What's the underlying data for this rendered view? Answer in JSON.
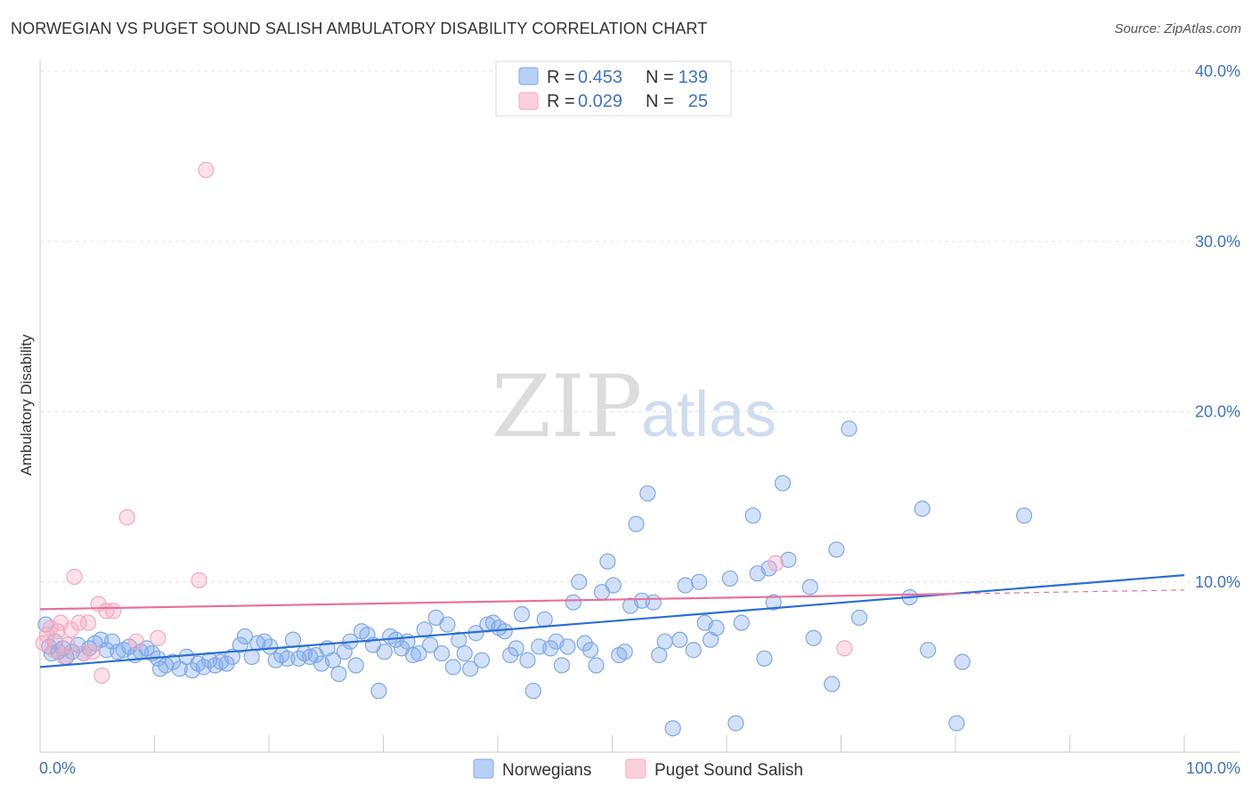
{
  "header": {
    "title": "NORWEGIAN VS PUGET SOUND SALISH AMBULATORY DISABILITY CORRELATION CHART",
    "source": "Source: ZipAtlas.com"
  },
  "watermark": {
    "zip": "ZIP",
    "atlas": "atlas"
  },
  "chart_data": {
    "type": "scatter",
    "ylabel": "Ambulatory Disability",
    "xlim": [
      0,
      100
    ],
    "ylim": [
      0,
      40
    ],
    "x_tick_labels": [
      "0.0%",
      "100.0%"
    ],
    "y_ticks": [
      10,
      20,
      30,
      40
    ],
    "y_tick_labels": [
      "10.0%",
      "20.0%",
      "30.0%",
      "40.0%"
    ],
    "grid": true,
    "legend_position": "top-center",
    "legend": [
      {
        "r_label": "R =",
        "r_value": "0.453",
        "n_label": "N =",
        "n_value": "139"
      },
      {
        "r_label": "R =",
        "r_value": "0.029",
        "n_label": "N =",
        "n_value": "25"
      }
    ],
    "series": [
      {
        "name": "Norwegians",
        "color": "#7fa8e8",
        "line_color": "#2b6fd1",
        "trend": {
          "x0": 0,
          "y0": 5.0,
          "x1": 100,
          "y1": 10.4
        },
        "points": [
          [
            0.5,
            7.5
          ],
          [
            0.8,
            6.2
          ],
          [
            1,
            5.8
          ],
          [
            1.3,
            6.5
          ],
          [
            1.6,
            5.9
          ],
          [
            2,
            6.1
          ],
          [
            2.3,
            5.6
          ],
          [
            2.8,
            5.9
          ],
          [
            3.3,
            6.3
          ],
          [
            3.8,
            5.8
          ],
          [
            4.3,
            6.1
          ],
          [
            4.8,
            6.4
          ],
          [
            5.3,
            6.6
          ],
          [
            5.8,
            6.0
          ],
          [
            6.3,
            6.5
          ],
          [
            6.8,
            5.9
          ],
          [
            7.3,
            6.0
          ],
          [
            7.8,
            6.2
          ],
          [
            8.3,
            5.7
          ],
          [
            8.8,
            5.9
          ],
          [
            9.3,
            6.1
          ],
          [
            9.8,
            5.8
          ],
          [
            10.3,
            5.5
          ],
          [
            10.5,
            4.9
          ],
          [
            11,
            5.1
          ],
          [
            11.6,
            5.3
          ],
          [
            12.2,
            4.9
          ],
          [
            12.8,
            5.6
          ],
          [
            13.3,
            4.8
          ],
          [
            13.8,
            5.2
          ],
          [
            14.3,
            5.0
          ],
          [
            14.8,
            5.4
          ],
          [
            15.3,
            5.1
          ],
          [
            15.8,
            5.3
          ],
          [
            16.3,
            5.2
          ],
          [
            16.8,
            5.6
          ],
          [
            17.5,
            6.3
          ],
          [
            17.9,
            6.8
          ],
          [
            18.5,
            5.6
          ],
          [
            19,
            6.4
          ],
          [
            19.6,
            6.5
          ],
          [
            20.1,
            6.2
          ],
          [
            20.6,
            5.4
          ],
          [
            21.1,
            5.7
          ],
          [
            21.6,
            5.5
          ],
          [
            22.1,
            6.6
          ],
          [
            22.6,
            5.5
          ],
          [
            23.1,
            5.8
          ],
          [
            23.6,
            5.6
          ],
          [
            24.1,
            5.7
          ],
          [
            24.6,
            5.2
          ],
          [
            25.1,
            6.1
          ],
          [
            25.6,
            5.4
          ],
          [
            26.1,
            4.6
          ],
          [
            26.6,
            5.9
          ],
          [
            27.1,
            6.5
          ],
          [
            27.6,
            5.1
          ],
          [
            28.1,
            7.1
          ],
          [
            28.6,
            6.9
          ],
          [
            29.1,
            6.3
          ],
          [
            29.6,
            3.6
          ],
          [
            30.1,
            5.9
          ],
          [
            30.6,
            6.8
          ],
          [
            31.1,
            6.6
          ],
          [
            31.6,
            6.1
          ],
          [
            32.1,
            6.5
          ],
          [
            32.6,
            5.7
          ],
          [
            33.1,
            5.8
          ],
          [
            33.6,
            7.2
          ],
          [
            34.1,
            6.3
          ],
          [
            34.6,
            7.9
          ],
          [
            35.1,
            5.8
          ],
          [
            35.6,
            7.5
          ],
          [
            36.1,
            5.0
          ],
          [
            36.6,
            6.6
          ],
          [
            37.1,
            5.8
          ],
          [
            37.6,
            4.9
          ],
          [
            38.1,
            7.0
          ],
          [
            38.6,
            5.4
          ],
          [
            39.1,
            7.5
          ],
          [
            39.6,
            7.6
          ],
          [
            40.1,
            7.3
          ],
          [
            40.6,
            7.1
          ],
          [
            41.1,
            5.7
          ],
          [
            41.6,
            6.1
          ],
          [
            42.1,
            8.1
          ],
          [
            42.6,
            5.4
          ],
          [
            43.1,
            3.6
          ],
          [
            43.6,
            6.2
          ],
          [
            44.1,
            7.8
          ],
          [
            44.6,
            6.1
          ],
          [
            45.1,
            6.5
          ],
          [
            45.6,
            5.1
          ],
          [
            46.1,
            6.2
          ],
          [
            46.6,
            8.8
          ],
          [
            47.1,
            10.0
          ],
          [
            47.6,
            6.4
          ],
          [
            48.1,
            6.0
          ],
          [
            48.6,
            5.1
          ],
          [
            49.1,
            9.4
          ],
          [
            49.6,
            11.2
          ],
          [
            50.1,
            9.8
          ],
          [
            50.6,
            5.7
          ],
          [
            51.1,
            5.9
          ],
          [
            51.6,
            8.6
          ],
          [
            52.1,
            13.4
          ],
          [
            52.6,
            8.9
          ],
          [
            53.1,
            15.2
          ],
          [
            53.6,
            8.8
          ],
          [
            54.1,
            5.7
          ],
          [
            54.6,
            6.5
          ],
          [
            55.3,
            1.4
          ],
          [
            55.9,
            6.6
          ],
          [
            56.4,
            9.8
          ],
          [
            57.1,
            6.0
          ],
          [
            57.6,
            10.0
          ],
          [
            58.1,
            7.6
          ],
          [
            58.6,
            6.6
          ],
          [
            59.1,
            7.3
          ],
          [
            60.3,
            10.2
          ],
          [
            60.8,
            1.7
          ],
          [
            61.3,
            7.6
          ],
          [
            62.3,
            13.9
          ],
          [
            62.7,
            10.5
          ],
          [
            63.3,
            5.5
          ],
          [
            63.7,
            10.8
          ],
          [
            64.1,
            8.8
          ],
          [
            64.9,
            15.8
          ],
          [
            65.4,
            11.3
          ],
          [
            67.3,
            9.7
          ],
          [
            67.6,
            6.7
          ],
          [
            69.2,
            4.0
          ],
          [
            69.6,
            11.9
          ],
          [
            70.7,
            19.0
          ],
          [
            71.6,
            7.9
          ],
          [
            76.0,
            9.1
          ],
          [
            77.1,
            14.3
          ],
          [
            77.6,
            6.0
          ],
          [
            80.1,
            1.7
          ],
          [
            80.6,
            5.3
          ],
          [
            86.0,
            13.9
          ]
        ]
      },
      {
        "name": "Puget Sound Salish",
        "color": "#f4a8be",
        "line_color": "#e8709a",
        "trend": {
          "x0": 0,
          "y0": 8.4,
          "x1": 80,
          "y1": 9.3
        },
        "points": [
          [
            0.3,
            6.4
          ],
          [
            0.6,
            6.9
          ],
          [
            0.9,
            7.3
          ],
          [
            1.2,
            6.0
          ],
          [
            1.5,
            7.1
          ],
          [
            1.8,
            7.6
          ],
          [
            2.1,
            5.6
          ],
          [
            2.4,
            6.3
          ],
          [
            2.7,
            7.2
          ],
          [
            3.0,
            10.3
          ],
          [
            3.4,
            7.6
          ],
          [
            3.8,
            5.8
          ],
          [
            4.2,
            7.6
          ],
          [
            4.6,
            5.9
          ],
          [
            5.1,
            8.7
          ],
          [
            5.4,
            4.5
          ],
          [
            5.8,
            8.3
          ],
          [
            6.4,
            8.3
          ],
          [
            7.6,
            13.8
          ],
          [
            8.4,
            6.5
          ],
          [
            10.3,
            6.7
          ],
          [
            13.9,
            10.1
          ],
          [
            14.5,
            34.2
          ],
          [
            64.3,
            11.1
          ],
          [
            70.3,
            6.1
          ]
        ]
      }
    ]
  }
}
